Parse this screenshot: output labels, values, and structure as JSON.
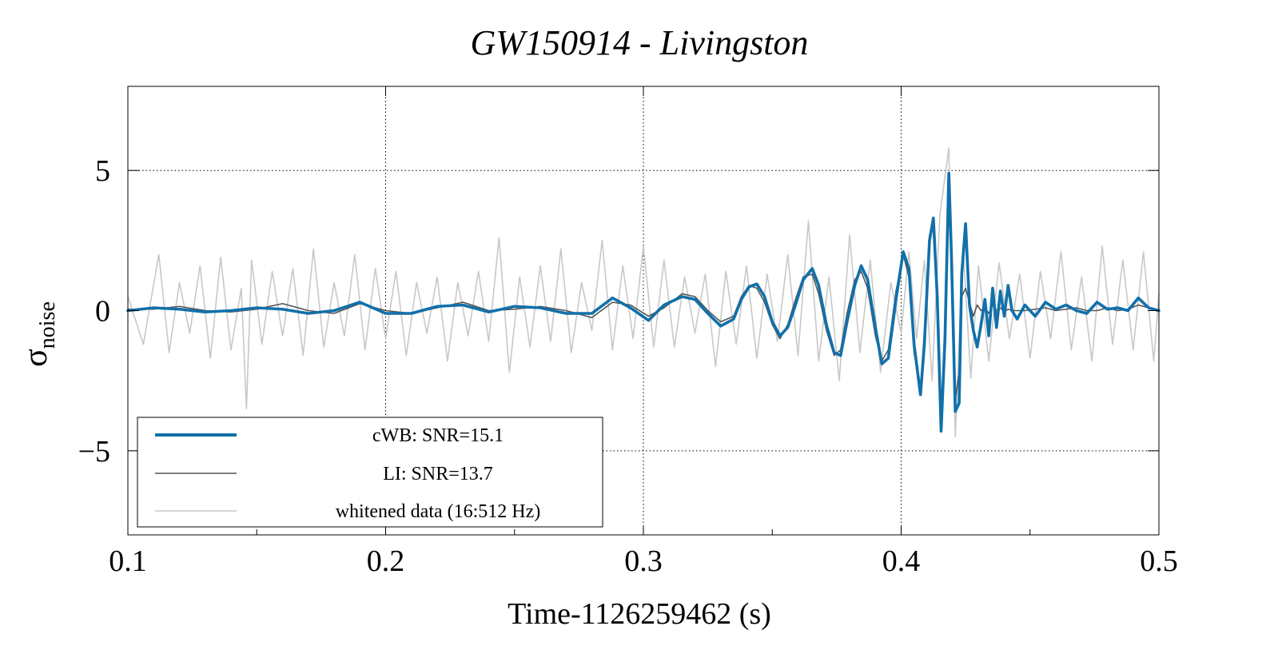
{
  "chart_data": {
    "type": "line",
    "title": "GW150914 - Livingston",
    "xlabel": "Time-1126259462 (s)",
    "ylabel": "σ",
    "ylabel_sub": "noise",
    "xlim": [
      0.1,
      0.5
    ],
    "ylim": [
      -8,
      8
    ],
    "x_ticks": [
      "0.1",
      "0.2",
      "0.3",
      "0.4",
      "0.5"
    ],
    "y_ticks": [
      "5",
      "0",
      "−5"
    ],
    "grid": true,
    "legend": {
      "placement": "bottom-left",
      "entries": [
        "cWB: SNR=15.1",
        "LI: SNR=13.7",
        "whitened data (16:512 Hz)"
      ]
    },
    "series": [
      {
        "name": "cWB: SNR=15.1",
        "color": "#1170aa",
        "x": [
          0.1,
          0.11,
          0.12,
          0.13,
          0.14,
          0.15,
          0.16,
          0.17,
          0.18,
          0.19,
          0.2,
          0.21,
          0.22,
          0.23,
          0.24,
          0.25,
          0.26,
          0.27,
          0.28,
          0.288,
          0.295,
          0.302,
          0.308,
          0.315,
          0.32,
          0.325,
          0.33,
          0.335,
          0.338,
          0.341,
          0.344,
          0.347,
          0.35,
          0.353,
          0.356,
          0.359,
          0.362,
          0.3655,
          0.368,
          0.371,
          0.374,
          0.3765,
          0.379,
          0.382,
          0.3845,
          0.387,
          0.39,
          0.3925,
          0.395,
          0.398,
          0.4008,
          0.403,
          0.405,
          0.4075,
          0.409,
          0.411,
          0.4125,
          0.414,
          0.4155,
          0.417,
          0.4185,
          0.4195,
          0.421,
          0.4225,
          0.4235,
          0.425,
          0.4265,
          0.428,
          0.4295,
          0.431,
          0.4325,
          0.434,
          0.4355,
          0.437,
          0.4385,
          0.44,
          0.4415,
          0.443,
          0.445,
          0.448,
          0.452,
          0.456,
          0.46,
          0.464,
          0.468,
          0.472,
          0.476,
          0.48,
          0.484,
          0.488,
          0.492,
          0.496,
          0.5
        ],
        "y": [
          0,
          0.1,
          0.05,
          -0.05,
          0,
          0.1,
          0.05,
          -0.1,
          0,
          0.3,
          -0.1,
          -0.1,
          0.15,
          0.2,
          -0.05,
          0.15,
          0.1,
          -0.1,
          -0.1,
          0.45,
          0.1,
          -0.35,
          0.2,
          0.5,
          0.4,
          -0.1,
          -0.55,
          -0.3,
          0.4,
          0.85,
          0.95,
          0.5,
          -0.4,
          -0.9,
          -0.6,
          0.2,
          1.1,
          1.5,
          0.9,
          -0.5,
          -1.5,
          -1.6,
          -0.4,
          0.9,
          1.6,
          1.1,
          -0.6,
          -1.9,
          -1.7,
          0.4,
          2.1,
          1.5,
          -1.2,
          -3.0,
          -1.2,
          2.5,
          3.3,
          0.5,
          -4.3,
          -1.0,
          4.9,
          2.0,
          -3.6,
          -3.3,
          1.3,
          3.1,
          0.2,
          -0.7,
          -1.3,
          -0.5,
          0.4,
          -0.9,
          0.8,
          -0.6,
          0.7,
          -0.2,
          0.9,
          0.0,
          -0.3,
          0.2,
          -0.2,
          0.3,
          0.05,
          0.2,
          0.0,
          -0.1,
          0.3,
          0.05,
          0.1,
          0.0,
          0.45,
          0.1,
          0.0
        ]
      },
      {
        "name": "LI: SNR=13.7",
        "color": "#555555",
        "x": [
          0.1,
          0.11,
          0.12,
          0.13,
          0.14,
          0.15,
          0.16,
          0.17,
          0.18,
          0.19,
          0.2,
          0.21,
          0.22,
          0.23,
          0.24,
          0.25,
          0.26,
          0.27,
          0.28,
          0.288,
          0.295,
          0.302,
          0.308,
          0.315,
          0.32,
          0.325,
          0.33,
          0.335,
          0.338,
          0.341,
          0.344,
          0.347,
          0.35,
          0.353,
          0.356,
          0.359,
          0.362,
          0.3655,
          0.368,
          0.371,
          0.374,
          0.3765,
          0.379,
          0.382,
          0.3845,
          0.387,
          0.39,
          0.3925,
          0.395,
          0.398,
          0.4008,
          0.403,
          0.405,
          0.4075,
          0.409,
          0.411,
          0.4125,
          0.414,
          0.4155,
          0.417,
          0.4185,
          0.4195,
          0.421,
          0.4225,
          0.4235,
          0.425,
          0.4265,
          0.428,
          0.4295,
          0.431,
          0.4325,
          0.434,
          0.4355,
          0.437,
          0.4385,
          0.44,
          0.4415,
          0.443,
          0.445,
          0.448,
          0.452,
          0.456,
          0.46,
          0.464,
          0.468,
          0.472,
          0.476,
          0.48,
          0.484,
          0.488,
          0.492,
          0.496,
          0.5
        ],
        "y": [
          0.05,
          0.05,
          0.15,
          0.0,
          -0.05,
          0.05,
          0.25,
          0.0,
          -0.1,
          0.25,
          0.0,
          -0.1,
          0.1,
          0.3,
          0.0,
          0.05,
          0.15,
          0.0,
          -0.25,
          0.3,
          0.2,
          -0.2,
          0.1,
          0.6,
          0.5,
          0.0,
          -0.4,
          -0.2,
          0.5,
          0.9,
          0.8,
          0.3,
          -0.5,
          -1.0,
          -0.5,
          0.4,
          1.2,
          1.3,
          0.6,
          -0.7,
          -1.6,
          -1.4,
          -0.1,
          1.1,
          1.4,
          0.8,
          -0.9,
          -1.8,
          -1.4,
          0.7,
          2.0,
          1.2,
          -1.5,
          -2.8,
          -0.8,
          2.7,
          3.0,
          0.1,
          -4.1,
          -0.5,
          4.6,
          1.5,
          -3.2,
          -2.2,
          0.5,
          0.8,
          0.3,
          -0.2,
          0.2,
          0.0,
          0.1,
          -0.1,
          0.2,
          0.0,
          0.1,
          -0.05,
          0.05,
          0.0,
          0.0,
          0.0,
          0.05,
          0.1,
          0.0,
          0.05,
          0.1,
          0.0,
          0.0,
          0.1,
          0.0,
          0.05,
          0.2,
          0.1,
          0.0
        ]
      },
      {
        "name": "whitened data (16:512 Hz)",
        "color": "#c8c8c8",
        "x": [
          0.1,
          0.106,
          0.112,
          0.116,
          0.12,
          0.124,
          0.128,
          0.132,
          0.136,
          0.14,
          0.144,
          0.146,
          0.148,
          0.152,
          0.156,
          0.16,
          0.164,
          0.168,
          0.172,
          0.176,
          0.18,
          0.184,
          0.188,
          0.192,
          0.196,
          0.2,
          0.204,
          0.208,
          0.212,
          0.216,
          0.22,
          0.224,
          0.228,
          0.232,
          0.236,
          0.24,
          0.244,
          0.248,
          0.252,
          0.256,
          0.26,
          0.264,
          0.268,
          0.272,
          0.276,
          0.28,
          0.284,
          0.288,
          0.292,
          0.296,
          0.3,
          0.304,
          0.308,
          0.312,
          0.316,
          0.32,
          0.324,
          0.328,
          0.332,
          0.336,
          0.34,
          0.344,
          0.348,
          0.352,
          0.356,
          0.36,
          0.364,
          0.368,
          0.372,
          0.376,
          0.38,
          0.384,
          0.388,
          0.392,
          0.396,
          0.4,
          0.403,
          0.406,
          0.409,
          0.412,
          0.415,
          0.4185,
          0.421,
          0.424,
          0.427,
          0.43,
          0.434,
          0.438,
          0.442,
          0.446,
          0.45,
          0.454,
          0.458,
          0.462,
          0.466,
          0.47,
          0.474,
          0.478,
          0.482,
          0.486,
          0.49,
          0.494,
          0.498,
          0.5
        ],
        "y": [
          0.5,
          -1.2,
          2.0,
          -1.5,
          1.0,
          -0.8,
          1.6,
          -1.7,
          1.9,
          -1.4,
          0.8,
          -3.5,
          1.8,
          -1.2,
          1.4,
          -0.9,
          1.5,
          -1.6,
          2.2,
          -1.3,
          1.0,
          -0.9,
          2.0,
          -1.4,
          1.5,
          -1.0,
          1.4,
          -1.6,
          1.0,
          -0.8,
          1.2,
          -1.8,
          1.0,
          -0.9,
          1.4,
          -1.1,
          2.6,
          -2.2,
          1.2,
          -1.3,
          1.6,
          -1.1,
          2.2,
          -1.5,
          1.0,
          -0.7,
          2.5,
          -1.4,
          1.6,
          -1.0,
          2.3,
          -1.3,
          1.8,
          -1.3,
          1.2,
          -0.8,
          1.3,
          -2.0,
          1.4,
          -1.2,
          1.6,
          -1.7,
          1.3,
          -1.1,
          2.0,
          -1.6,
          3.2,
          -1.8,
          1.2,
          -2.5,
          2.7,
          -1.5,
          1.8,
          -2.2,
          1.0,
          -0.8,
          2.1,
          -1.0,
          1.8,
          -2.5,
          3.4,
          5.8,
          -4.5,
          2.3,
          -2.4,
          1.6,
          -1.8,
          1.7,
          -1.0,
          1.3,
          -1.7,
          1.4,
          -1.0,
          2.1,
          -1.4,
          1.2,
          -1.8,
          2.3,
          -1.2,
          1.8,
          -1.4,
          2.1,
          -1.8,
          0.6
        ]
      }
    ]
  }
}
